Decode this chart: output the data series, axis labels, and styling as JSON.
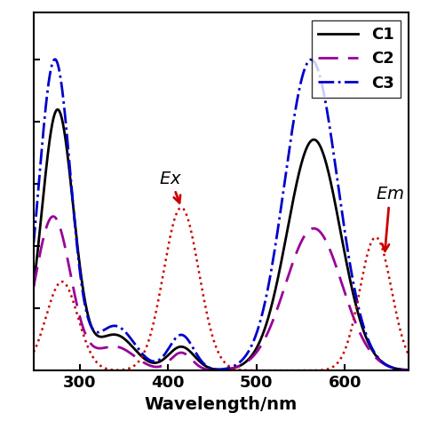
{
  "title": "",
  "xlabel": "Wavelength/nm",
  "ylabel": "",
  "xlim": [
    248,
    672
  ],
  "ylim": [
    0,
    1.15
  ],
  "x_ticks": [
    300,
    400,
    500,
    600
  ],
  "legend_labels": [
    "C1",
    "C2",
    "C3"
  ],
  "c1_color": "#000000",
  "c2_color": "#990099",
  "c3_color": "#0000cc",
  "ex_color": "#cc0000",
  "background": "#ffffff",
  "ex_label": "Ex",
  "em_label": "Em"
}
